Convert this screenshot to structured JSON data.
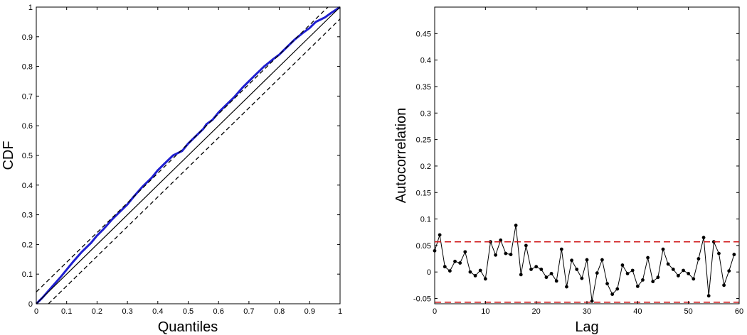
{
  "chart_data": [
    {
      "type": "line",
      "xlabel": "Quantiles",
      "ylabel": "CDF",
      "xlim": [
        0,
        1
      ],
      "ylim": [
        0,
        1
      ],
      "xticks": [
        "0",
        "0.1",
        "0.2",
        "0.3",
        "0.4",
        "0.5",
        "0.6",
        "0.7",
        "0.8",
        "0.9",
        "1"
      ],
      "yticks": [
        "0",
        "0.1",
        "0.2",
        "0.3",
        "0.4",
        "0.5",
        "0.6",
        "0.7",
        "0.8",
        "0.9",
        "1"
      ],
      "grid": false,
      "series": [
        {
          "style": "blue-thick",
          "color": "#1f1fd0",
          "x": [
            0,
            0.02,
            0.05,
            0.08,
            0.1,
            0.12,
            0.15,
            0.18,
            0.2,
            0.22,
            0.25,
            0.28,
            0.3,
            0.32,
            0.35,
            0.38,
            0.4,
            0.42,
            0.45,
            0.48,
            0.5,
            0.52,
            0.55,
            0.56,
            0.58,
            0.6,
            0.62,
            0.65,
            0.68,
            0.7,
            0.72,
            0.75,
            0.78,
            0.8,
            0.82,
            0.85,
            0.88,
            0.9,
            0.92,
            0.95,
            0.97,
            1.0
          ],
          "y": [
            0,
            0.02,
            0.055,
            0.09,
            0.115,
            0.14,
            0.175,
            0.205,
            0.23,
            0.25,
            0.285,
            0.315,
            0.335,
            0.36,
            0.395,
            0.425,
            0.45,
            0.47,
            0.5,
            0.515,
            0.54,
            0.56,
            0.59,
            0.605,
            0.62,
            0.645,
            0.665,
            0.695,
            0.73,
            0.75,
            0.77,
            0.8,
            0.825,
            0.84,
            0.86,
            0.89,
            0.915,
            0.93,
            0.95,
            0.965,
            0.98,
            1.0
          ]
        },
        {
          "style": "black-solid",
          "color": "#000000",
          "x": [
            0,
            1
          ],
          "y": [
            0,
            1
          ]
        },
        {
          "style": "black-dashed",
          "color": "#000000",
          "x": [
            0,
            0.96
          ],
          "y": [
            0.04,
            1
          ]
        },
        {
          "style": "black-dashed",
          "color": "#000000",
          "x": [
            0.04,
            1
          ],
          "y": [
            0,
            0.96
          ]
        }
      ]
    },
    {
      "type": "line",
      "xlabel": "Lag",
      "ylabel": "Autocorrelation",
      "xlim": [
        0,
        60
      ],
      "ylim": [
        -0.06,
        0.5
      ],
      "xticks": [
        "0",
        "10",
        "20",
        "30",
        "40",
        "50",
        "60"
      ],
      "yticks": [
        "-0.05",
        "0",
        "0.05",
        "0.1",
        "0.15",
        "0.2",
        "0.25",
        "0.3",
        "0.35",
        "0.4",
        "0.45"
      ],
      "grid": false,
      "series": [
        {
          "style": "black-marker-line",
          "color": "#000000",
          "x": [
            0,
            1,
            2,
            3,
            4,
            5,
            6,
            7,
            8,
            9,
            10,
            11,
            12,
            13,
            14,
            15,
            16,
            17,
            18,
            19,
            20,
            21,
            22,
            23,
            24,
            25,
            26,
            27,
            28,
            29,
            30,
            31,
            32,
            33,
            34,
            35,
            36,
            37,
            38,
            39,
            40,
            41,
            42,
            43,
            44,
            45,
            46,
            47,
            48,
            49,
            50,
            51,
            52,
            53,
            54,
            55,
            56,
            57,
            58,
            59
          ],
          "y": [
            0.04,
            0.07,
            0.01,
            0.002,
            0.02,
            0.017,
            0.038,
            0.0,
            -0.007,
            0.003,
            -0.013,
            0.057,
            0.032,
            0.06,
            0.035,
            0.033,
            0.088,
            -0.005,
            0.05,
            0.005,
            0.01,
            0.005,
            -0.01,
            -0.003,
            -0.017,
            0.043,
            -0.028,
            0.022,
            0.005,
            -0.012,
            0.023,
            -0.055,
            -0.002,
            0.023,
            -0.022,
            -0.042,
            -0.032,
            0.013,
            -0.003,
            0.003,
            -0.027,
            -0.015,
            0.027,
            -0.018,
            -0.01,
            0.043,
            0.015,
            0.005,
            -0.007,
            0.003,
            -0.003,
            -0.013,
            0.025,
            0.065,
            -0.045,
            0.057,
            0.035,
            -0.025,
            0.002,
            0.033
          ]
        },
        {
          "style": "red-dashed",
          "color": "#d0191b",
          "x": [
            0,
            60
          ],
          "y": [
            0.057,
            0.057
          ]
        },
        {
          "style": "red-dashed",
          "color": "#d0191b",
          "x": [
            0,
            60
          ],
          "y": [
            -0.057,
            -0.057
          ]
        }
      ]
    }
  ]
}
